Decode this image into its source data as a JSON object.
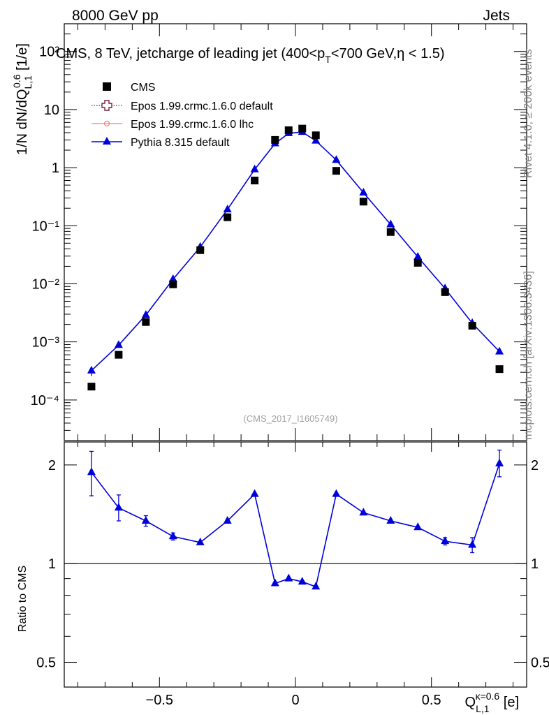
{
  "header": {
    "left": "8000 GeV pp",
    "right": "Jets"
  },
  "side_labels": {
    "top": "Rivet 4.1.0, ≥ 200k events",
    "bottom": "mcplots.cern.ch [arXiv:1306.3436]"
  },
  "chart_data": [
    {
      "type": "scatter",
      "panel": "main",
      "title": "CMS, 8 TeV, jetcharge of leading jet (400<p_T<700 GeV,η < 1.5)",
      "watermark": "(CMS_2017_I1605749)",
      "ylabel": "1/N dN/dQ_{L,1}^{0.6} [1/e]",
      "yscale": "log",
      "ylim": [
        2e-05,
        300
      ],
      "xlim": [
        -0.85,
        0.85
      ],
      "y_tick_labels": [
        "10⁻⁴",
        "10⁻³",
        "10⁻²",
        "10⁻¹",
        "1",
        "10",
        "10²"
      ],
      "legend": [
        {
          "name": "CMS",
          "marker": "square",
          "color": "#000000"
        },
        {
          "name": "Epos 1.99.crmc.1.6.0 default",
          "marker": "open-cross",
          "color": "#7b1f3a",
          "line": "dotted"
        },
        {
          "name": "Epos 1.99.crmc.1.6.0 lhc",
          "marker": "small-cross",
          "color": "#f08080",
          "line": "solid"
        },
        {
          "name": "Pythia 8.315 default",
          "marker": "triangle",
          "color": "#0000dd",
          "line": "solid"
        }
      ],
      "series": [
        {
          "name": "CMS",
          "x": [
            -0.75,
            -0.65,
            -0.55,
            -0.45,
            -0.35,
            -0.25,
            -0.15,
            -0.075,
            -0.025,
            0.025,
            0.075,
            0.15,
            0.25,
            0.35,
            0.45,
            0.55,
            0.65,
            0.75
          ],
          "values": [
            0.00017,
            0.0006,
            0.0022,
            0.0098,
            0.038,
            0.14,
            0.6,
            3.0,
            4.4,
            4.7,
            3.6,
            0.88,
            0.26,
            0.078,
            0.023,
            0.0072,
            0.0019,
            0.00034
          ]
        },
        {
          "name": "Pythia 8.315 default",
          "x": [
            -0.75,
            -0.65,
            -0.55,
            -0.45,
            -0.35,
            -0.25,
            -0.15,
            -0.075,
            -0.025,
            0.025,
            0.075,
            0.15,
            0.25,
            0.35,
            0.45,
            0.55,
            0.65,
            0.75
          ],
          "values": [
            0.00032,
            0.00088,
            0.0029,
            0.012,
            0.043,
            0.19,
            0.93,
            2.6,
            3.9,
            4.1,
            2.9,
            1.35,
            0.37,
            0.105,
            0.029,
            0.0083,
            0.0021,
            0.00068
          ],
          "err": [
            6e-05,
            0,
            0,
            0,
            0,
            0,
            0,
            0,
            0,
            0,
            0,
            0,
            0,
            0,
            0,
            0,
            0,
            0
          ]
        }
      ]
    },
    {
      "type": "line",
      "panel": "ratio",
      "ylabel": "Ratio to CMS",
      "xlabel": "Q_{L,1}^{κ=0.6} [e]",
      "ylim": [
        0.42,
        2.35
      ],
      "xlim": [
        -0.85,
        0.85
      ],
      "y_ticks": [
        0.5,
        1,
        2
      ],
      "y_tick_labels": [
        "0.5",
        "1",
        "2"
      ],
      "x_ticks": [
        -0.5,
        0,
        0.5
      ],
      "x_tick_labels": [
        "−0.5",
        "0",
        "0.5"
      ],
      "reference": 1,
      "series": [
        {
          "name": "Pythia 8.315 default",
          "x": [
            -0.75,
            -0.65,
            -0.55,
            -0.45,
            -0.35,
            -0.25,
            -0.15,
            -0.075,
            -0.025,
            0.025,
            0.075,
            0.15,
            0.25,
            0.35,
            0.45,
            0.55,
            0.65,
            0.75
          ],
          "values": [
            1.9,
            1.48,
            1.35,
            1.21,
            1.16,
            1.35,
            1.63,
            0.87,
            0.9,
            0.88,
            0.85,
            1.63,
            1.43,
            1.35,
            1.29,
            1.17,
            1.14,
            2.02
          ],
          "err_low": [
            0.29,
            0.13,
            0.05,
            0.03,
            0.0,
            0.0,
            0.0,
            0.0,
            0.0,
            0.0,
            0.0,
            0.0,
            0.0,
            0.0,
            0.0,
            0.03,
            0.06,
            0.18
          ],
          "err_high": [
            0.3,
            0.14,
            0.05,
            0.03,
            0.0,
            0.0,
            0.0,
            0.0,
            0.0,
            0.0,
            0.0,
            0.0,
            0.0,
            0.0,
            0.0,
            0.03,
            0.06,
            0.2
          ]
        }
      ]
    }
  ]
}
